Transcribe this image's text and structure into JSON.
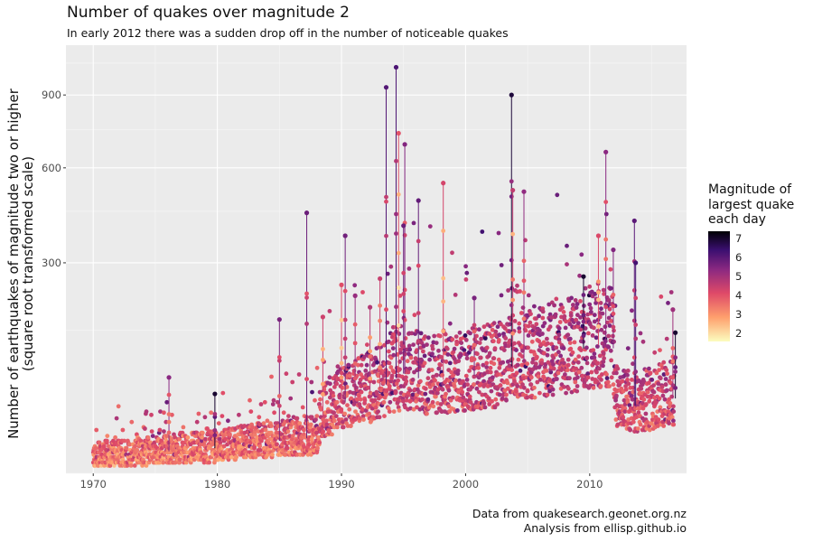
{
  "chart_data": {
    "type": "scatter",
    "title": "Number of quakes over magnitude 2",
    "subtitle": "In early 2012 there was a sudden drop off in the number of noticeable quakes",
    "ylabel": "Number of earthquakes of magnitude two or higher\n(square root transformed scale)",
    "y_scale": "sqrt",
    "xlim": [
      1967.8,
      2017.8
    ],
    "ylim": [
      2,
      1140
    ],
    "x_ticks": [
      1970,
      1980,
      1990,
      2000,
      2010
    ],
    "y_ticks": [
      300,
      600,
      900
    ],
    "grid": true,
    "legend": {
      "title": "Magnitude of\nlargest quake\neach day",
      "placement": "right",
      "ticks": [
        7,
        6,
        5,
        4,
        3,
        2
      ],
      "range": [
        1.6,
        7.4
      ]
    },
    "caption": [
      "Data from quakesearch.geonet.org.nz",
      "Analysis from ellisp.github.io"
    ],
    "trend": [
      {
        "year": 1970,
        "count": 7
      },
      {
        "year": 1975,
        "count": 9
      },
      {
        "year": 1980,
        "count": 11
      },
      {
        "year": 1985,
        "count": 15
      },
      {
        "year": 1988,
        "count": 17
      },
      {
        "year": 1988.3,
        "count": 30
      },
      {
        "year": 1990,
        "count": 45
      },
      {
        "year": 1993,
        "count": 60
      },
      {
        "year": 1995,
        "count": 80
      },
      {
        "year": 1997,
        "count": 70
      },
      {
        "year": 2000,
        "count": 75
      },
      {
        "year": 2003,
        "count": 85
      },
      {
        "year": 2005,
        "count": 100
      },
      {
        "year": 2008,
        "count": 110
      },
      {
        "year": 2011,
        "count": 125
      },
      {
        "year": 2011.9,
        "count": 118
      },
      {
        "year": 2012.05,
        "count": 45
      },
      {
        "year": 2014,
        "count": 42
      },
      {
        "year": 2016,
        "count": 48
      },
      {
        "year": 2016.8,
        "count": 50
      }
    ],
    "spikes": [
      {
        "year": 1976.1,
        "count": 75,
        "mag": 5.4
      },
      {
        "year": 1979.8,
        "count": 55,
        "mag": 7.0
      },
      {
        "year": 1985.0,
        "count": 170,
        "mag": 5.6
      },
      {
        "year": 1987.2,
        "count": 445,
        "mag": 5.8
      },
      {
        "year": 1988.5,
        "count": 175,
        "mag": 4.4
      },
      {
        "year": 1990.3,
        "count": 375,
        "mag": 5.7
      },
      {
        "year": 1990.0,
        "count": 245,
        "mag": 4.1
      },
      {
        "year": 1991.1,
        "count": 220,
        "mag": 5.2
      },
      {
        "year": 1992.3,
        "count": 195,
        "mag": 4.8
      },
      {
        "year": 1993.1,
        "count": 260,
        "mag": 4.5
      },
      {
        "year": 1993.6,
        "count": 935,
        "mag": 6.1
      },
      {
        "year": 1994.4,
        "count": 1030,
        "mag": 6.2
      },
      {
        "year": 1994.6,
        "count": 735,
        "mag": 4.0
      },
      {
        "year": 1995.1,
        "count": 690,
        "mag": 5.5
      },
      {
        "year": 1995.0,
        "count": 405,
        "mag": 5.8
      },
      {
        "year": 1996.2,
        "count": 485,
        "mag": 5.9
      },
      {
        "year": 1998.2,
        "count": 545,
        "mag": 4.3
      },
      {
        "year": 2000.7,
        "count": 215,
        "mag": 5.6
      },
      {
        "year": 2003.7,
        "count": 900,
        "mag": 6.9
      },
      {
        "year": 2003.8,
        "count": 520,
        "mag": 4.6
      },
      {
        "year": 2004.7,
        "count": 515,
        "mag": 5.3
      },
      {
        "year": 2009.5,
        "count": 265,
        "mag": 7.0
      },
      {
        "year": 2010.7,
        "count": 375,
        "mag": 4.2
      },
      {
        "year": 2011.3,
        "count": 660,
        "mag": 5.4
      },
      {
        "year": 2011.9,
        "count": 335,
        "mag": 5.5
      },
      {
        "year": 2013.6,
        "count": 420,
        "mag": 6.0
      },
      {
        "year": 2013.7,
        "count": 300,
        "mag": 6.3
      },
      {
        "year": 2016.7,
        "count": 190,
        "mag": 5.1
      },
      {
        "year": 2016.9,
        "count": 145,
        "mag": 7.0
      }
    ]
  }
}
